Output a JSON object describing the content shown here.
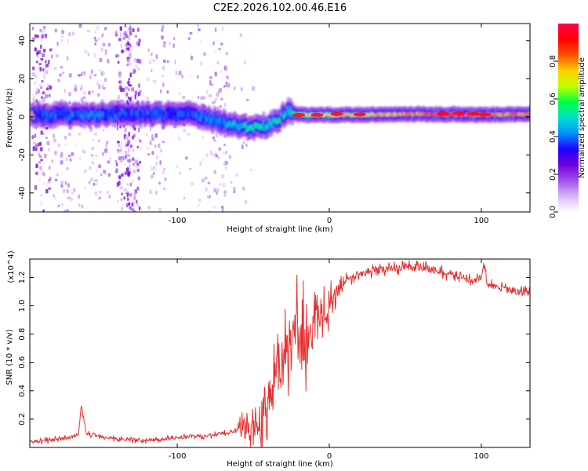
{
  "title": "C2E2.2026.102.00.46.E16",
  "chart_data": [
    {
      "type": "heatmap",
      "name": "spectrogram",
      "xlabel": "Height of straight line (km)",
      "ylabel": "Frequency (Hz)",
      "xlim": [
        -197,
        132
      ],
      "ylim": [
        -50,
        49
      ],
      "xticks": [
        -100,
        0,
        100
      ],
      "yticks": [
        -40,
        -20,
        0,
        20,
        40
      ],
      "colorbar": {
        "label": "Normalized spectral amplitude",
        "range": [
          0,
          1
        ],
        "ticks": [
          0,
          0.2,
          0.4,
          0.6,
          0.8
        ],
        "colors": [
          "#ffffff",
          "#d8b8f5",
          "#a050e8",
          "#7000e0",
          "#2000ff",
          "#0090ff",
          "#00e0d0",
          "#00ff40",
          "#c0ff00",
          "#ffd000",
          "#ff5000",
          "#ff0000",
          "#ff0050"
        ]
      },
      "ridge": [
        {
          "x": -195,
          "freq": 1.0,
          "amp": 0.35
        },
        {
          "x": -170,
          "freq": 0.8,
          "amp": 0.4
        },
        {
          "x": -150,
          "freq": 1.5,
          "amp": 0.38
        },
        {
          "x": -120,
          "freq": 1.2,
          "amp": 0.35
        },
        {
          "x": -90,
          "freq": 1.5,
          "amp": 0.36
        },
        {
          "x": -75,
          "freq": -2.0,
          "amp": 0.42
        },
        {
          "x": -60,
          "freq": -4.5,
          "amp": 0.48
        },
        {
          "x": -50,
          "freq": -6.0,
          "amp": 0.55
        },
        {
          "x": -40,
          "freq": -4.0,
          "amp": 0.5
        },
        {
          "x": -33,
          "freq": -1.0,
          "amp": 0.5
        },
        {
          "x": -28,
          "freq": 4.0,
          "amp": 0.45
        },
        {
          "x": -22,
          "freq": 1.0,
          "amp": 0.65
        },
        {
          "x": 0,
          "freq": 1.0,
          "amp": 0.72
        },
        {
          "x": 40,
          "freq": 1.2,
          "amp": 0.75
        },
        {
          "x": 80,
          "freq": 1.3,
          "amp": 0.85
        },
        {
          "x": 100,
          "freq": 1.0,
          "amp": 0.8
        },
        {
          "x": 132,
          "freq": 1.5,
          "amp": 0.82
        }
      ]
    },
    {
      "type": "line",
      "name": "snr",
      "xlabel": "Height of straight line (km)",
      "ylabel": "SNR (10 * v/v)",
      "y_scale_label": "(x10^4)",
      "xlim": [
        -197,
        132
      ],
      "ylim": [
        0,
        1.33
      ],
      "xticks": [
        -100,
        0,
        100
      ],
      "yticks": [
        0.2,
        0.4,
        0.6,
        0.8,
        1.0,
        1.2
      ],
      "color": "#e83030",
      "series": [
        {
          "name": "SNR",
          "x": [
            -197,
            -185,
            -175,
            -165,
            -163,
            -160,
            -150,
            -140,
            -120,
            -100,
            -90,
            -80,
            -70,
            -60,
            -50,
            -45,
            -42,
            -40,
            -38,
            -36,
            -34,
            -32,
            -30,
            -28,
            -26,
            -24,
            -22,
            -20,
            -18,
            -16,
            -14,
            -12,
            -10,
            -8,
            -6,
            -4,
            -2,
            0,
            5,
            10,
            15,
            20,
            30,
            40,
            50,
            60,
            70,
            80,
            90,
            95,
            100,
            102,
            104,
            110,
            120,
            132
          ],
          "y": [
            0.04,
            0.05,
            0.06,
            0.09,
            0.3,
            0.1,
            0.08,
            0.06,
            0.05,
            0.07,
            0.08,
            0.08,
            0.1,
            0.12,
            0.14,
            0.2,
            0.28,
            0.32,
            0.42,
            0.48,
            0.55,
            0.6,
            0.65,
            0.72,
            0.75,
            0.7,
            0.85,
            0.8,
            0.72,
            0.78,
            0.82,
            0.7,
            0.85,
            0.88,
            0.9,
            0.95,
            0.92,
            1.0,
            1.12,
            1.18,
            1.2,
            1.23,
            1.25,
            1.26,
            1.28,
            1.27,
            1.25,
            1.22,
            1.2,
            1.17,
            1.2,
            1.3,
            1.15,
            1.13,
            1.11,
            1.09
          ]
        }
      ]
    }
  ]
}
